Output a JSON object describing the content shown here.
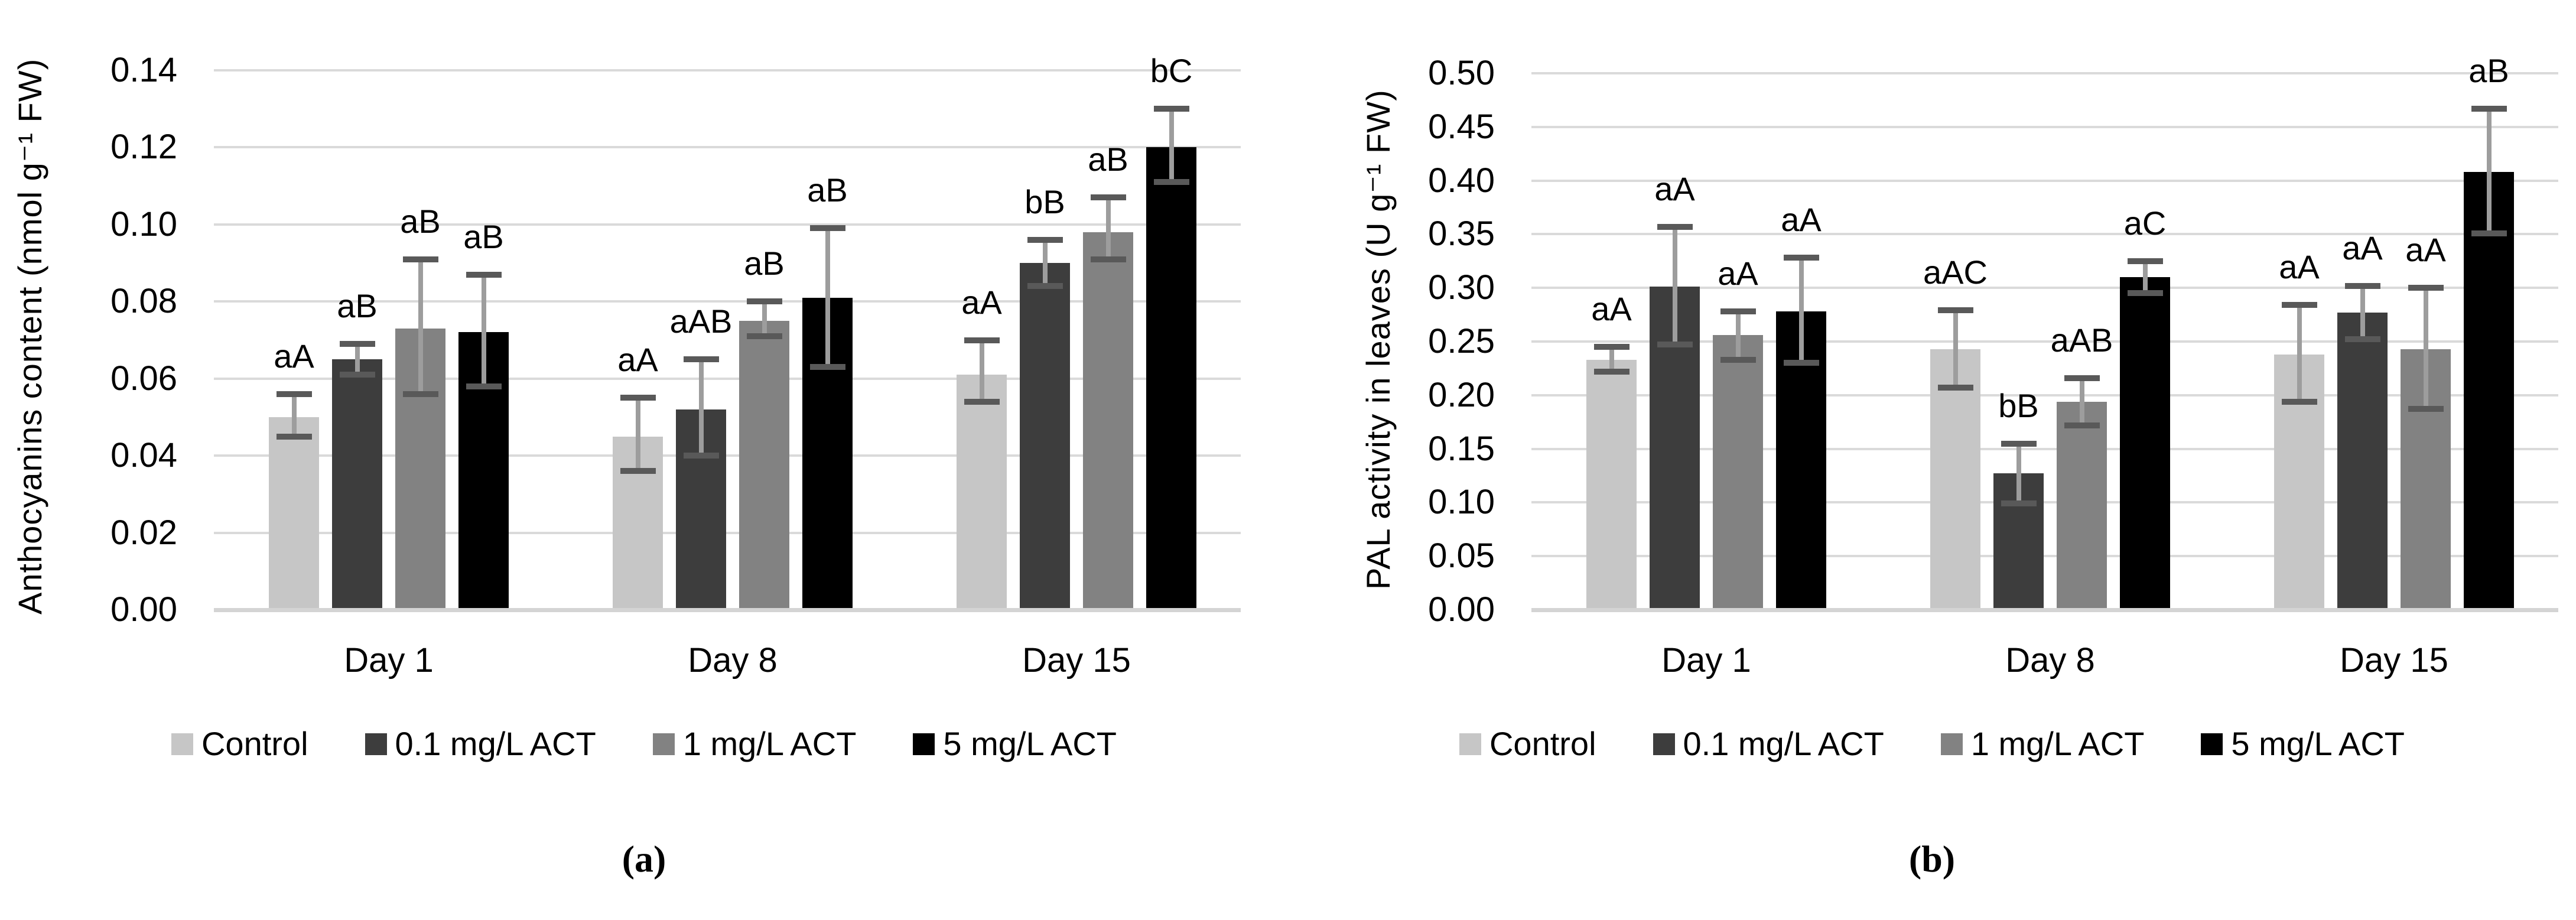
{
  "chart_data": [
    {
      "type": "bar",
      "panel_label": "(a)",
      "ylabel": "Anthocyanins content (nmol g⁻¹ FW)",
      "ylim": [
        0,
        0.14
      ],
      "ytick_step": 0.02,
      "ytick_labels": [
        "0.14",
        "0.12",
        "0.10",
        "0.08",
        "0.06",
        "0.04",
        "0.02",
        "0.00"
      ],
      "categories": [
        "Day 1",
        "Day 8",
        "Day 15"
      ],
      "grid": true,
      "legend_position": "bottom",
      "series": [
        {
          "name": "Control",
          "color": "#c6c6c6",
          "values": [
            0.05,
            0.045,
            0.061
          ],
          "err_low": [
            0.045,
            0.036,
            0.054
          ],
          "err_high": [
            0.056,
            0.055,
            0.07
          ],
          "sig_labels": [
            "aA",
            "aA",
            "aA"
          ]
        },
        {
          "name": "0.1 mg/L ACT",
          "color": "#3d3d3d",
          "values": [
            0.065,
            0.052,
            0.09
          ],
          "err_low": [
            0.061,
            0.04,
            0.084
          ],
          "err_high": [
            0.069,
            0.065,
            0.096
          ],
          "sig_labels": [
            "aB",
            "aAB",
            "bB"
          ]
        },
        {
          "name": "1 mg/L ACT",
          "color": "#828282",
          "values": [
            0.073,
            0.075,
            0.098
          ],
          "err_low": [
            0.056,
            0.071,
            0.091
          ],
          "err_high": [
            0.091,
            0.08,
            0.107
          ],
          "sig_labels": [
            "aB",
            "aB",
            "aB"
          ]
        },
        {
          "name": "5 mg/L ACT",
          "color": "#000000",
          "values": [
            0.072,
            0.081,
            0.12
          ],
          "err_low": [
            0.058,
            0.063,
            0.111
          ],
          "err_high": [
            0.087,
            0.099,
            0.13
          ],
          "sig_labels": [
            "aB",
            "aB",
            "bC"
          ]
        }
      ]
    },
    {
      "type": "bar",
      "panel_label": "(b)",
      "ylabel": "PAL activity in leaves (U g⁻¹ FW)",
      "ylim": [
        0,
        0.5
      ],
      "ytick_step": 0.05,
      "ytick_labels": [
        "0.50",
        "0.45",
        "0.40",
        "0.35",
        "0.30",
        "0.25",
        "0.20",
        "0.15",
        "0.10",
        "0.05",
        "0.00"
      ],
      "categories": [
        "Day 1",
        "Day 8",
        "Day 15"
      ],
      "grid": true,
      "legend_position": "bottom",
      "series": [
        {
          "name": "Control",
          "color": "#c6c6c6",
          "values": [
            0.233,
            0.243,
            0.238
          ],
          "err_low": [
            0.222,
            0.207,
            0.194
          ],
          "err_high": [
            0.245,
            0.279,
            0.284
          ],
          "sig_labels": [
            "aA",
            "aAC",
            "aA"
          ]
        },
        {
          "name": "0.1 mg/L ACT",
          "color": "#3d3d3d",
          "values": [
            0.301,
            0.127,
            0.277
          ],
          "err_low": [
            0.247,
            0.099,
            0.252
          ],
          "err_high": [
            0.357,
            0.155,
            0.302
          ],
          "sig_labels": [
            "aA",
            "bB",
            "aA"
          ]
        },
        {
          "name": "1 mg/L ACT",
          "color": "#828282",
          "values": [
            0.256,
            0.194,
            0.243
          ],
          "err_low": [
            0.233,
            0.172,
            0.187
          ],
          "err_high": [
            0.278,
            0.216,
            0.3
          ],
          "sig_labels": [
            "aA",
            "aAB",
            "aA"
          ]
        },
        {
          "name": "5 mg/L ACT",
          "color": "#000000",
          "values": [
            0.278,
            0.31,
            0.408
          ],
          "err_low": [
            0.23,
            0.295,
            0.351
          ],
          "err_high": [
            0.328,
            0.325,
            0.467
          ],
          "sig_labels": [
            "aA",
            "aC",
            "aB"
          ]
        }
      ]
    }
  ],
  "legend": {
    "items": [
      {
        "label": "Control",
        "color": "#c6c6c6"
      },
      {
        "label": "0.1 mg/L ACT",
        "color": "#3d3d3d"
      },
      {
        "label": "1 mg/L ACT",
        "color": "#828282"
      },
      {
        "label": "5 mg/L ACT",
        "color": "#000000"
      }
    ]
  },
  "styles": {
    "gridline_color": "#dadada",
    "axis_line_color": "#d4d4d4",
    "error_stem_color": "#9d9d9d",
    "error_cap_color": "#595959",
    "text_color": "#000000"
  }
}
